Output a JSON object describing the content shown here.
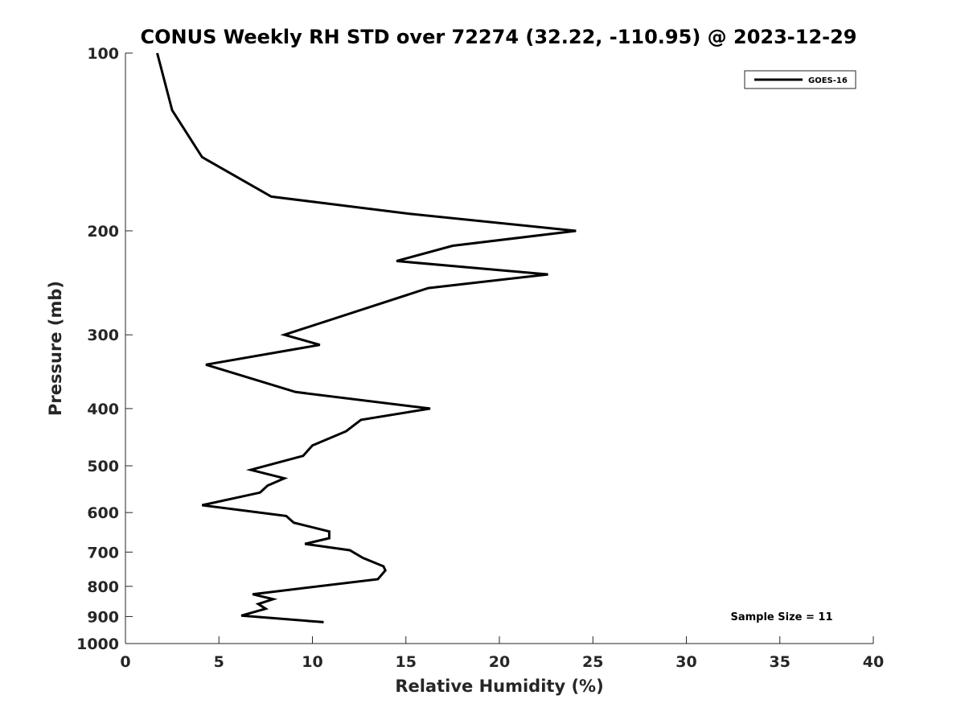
{
  "chart_data": {
    "type": "line",
    "title": "CONUS Weekly RH STD over 72274 (32.22, -110.95) @ 2023-12-29",
    "xlabel": "Relative Humidity (%)",
    "ylabel": "Pressure (mb)",
    "xlim": [
      0,
      40
    ],
    "ylim": [
      100,
      1000
    ],
    "yscale": "log",
    "y_reversed": true,
    "xticks": [
      0,
      5,
      10,
      15,
      20,
      25,
      30,
      35,
      40
    ],
    "yticks": [
      100,
      200,
      300,
      400,
      500,
      600,
      700,
      800,
      900,
      1000
    ],
    "grid": false,
    "legend_position": "top-right",
    "annotation": "Sample Size = 11",
    "series": [
      {
        "name": "GOES-16",
        "color": "#000000",
        "x": [
          1.7,
          2.5,
          4.1,
          7.8,
          15.1,
          24.1,
          17.5,
          14.5,
          22.6,
          16.2,
          8.5,
          10.4,
          4.3,
          9.1,
          16.3,
          12.6,
          11.8,
          10.0,
          9.5,
          6.7,
          8.5,
          7.6,
          7.2,
          4.1,
          8.6,
          9.0,
          10.9,
          10.9,
          9.6,
          12.0,
          12.7,
          13.8,
          13.9,
          13.5,
          6.8,
          7.9,
          7.1,
          7.5,
          6.2,
          10.6
        ],
        "y": [
          100,
          125,
          150,
          175,
          187,
          200,
          212,
          225,
          237,
          250,
          300,
          312,
          337,
          375,
          400,
          418,
          437,
          462,
          481,
          508,
          525,
          540,
          555,
          583,
          608,
          624,
          646,
          663,
          678,
          695,
          716,
          740,
          752,
          778,
          825,
          841,
          857,
          873,
          897,
          920
        ]
      }
    ]
  }
}
